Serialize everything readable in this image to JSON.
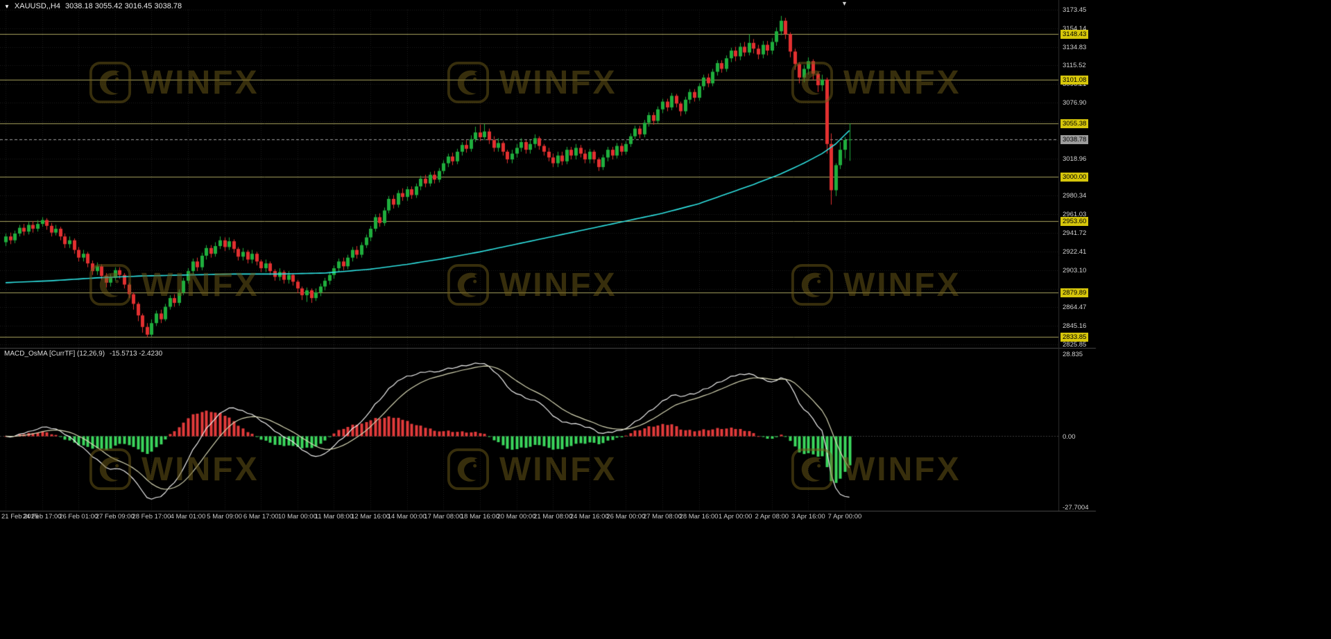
{
  "icons": {
    "dropdown": "▼",
    "shift_marker": "▼"
  },
  "title": {
    "symbol": "XAUUSD,,H4",
    "ohlc": "3038.18 3055.42 3016.45 3038.78"
  },
  "indicator": {
    "label": "MACD_OsMA [CurrTF] (12,26,9)",
    "values": "-15.5713 -2.4230"
  },
  "watermark": {
    "text": "WINFX",
    "color": "#6e5d18"
  },
  "price_axis": {
    "ticks": [
      {
        "v": 3173.45,
        "label": "3173.45"
      },
      {
        "v": 3154.14,
        "label": "3154.14"
      },
      {
        "v": 3134.83,
        "label": "3134.83"
      },
      {
        "v": 3115.52,
        "label": "3115.52"
      },
      {
        "v": 3096.21,
        "label": "3096.21"
      },
      {
        "v": 3076.9,
        "label": "3076.90"
      },
      {
        "v": 3018.96,
        "label": "3018.96"
      },
      {
        "v": 2980.34,
        "label": "2980.34"
      },
      {
        "v": 2961.03,
        "label": "2961.03"
      },
      {
        "v": 2941.72,
        "label": "2941.72"
      },
      {
        "v": 2922.41,
        "label": "2922.41"
      },
      {
        "v": 2903.1,
        "label": "2903.10"
      },
      {
        "v": 2864.47,
        "label": "2864.47"
      },
      {
        "v": 2845.16,
        "label": "2845.16"
      },
      {
        "v": 2825.85,
        "label": "2825.85"
      }
    ],
    "levels": [
      {
        "v": 3148.43,
        "label": "3148.43"
      },
      {
        "v": 3101.08,
        "label": "3101.08"
      },
      {
        "v": 3055.38,
        "label": "3055.38"
      },
      {
        "v": 3000.0,
        "label": "3000.00"
      },
      {
        "v": 2953.6,
        "label": "2953.60"
      },
      {
        "v": 2879.89,
        "label": "2879.89"
      },
      {
        "v": 2833.85,
        "label": "2833.85"
      }
    ],
    "current": {
      "v": 3038.78,
      "label": "3038.78"
    }
  },
  "macd_axis": {
    "top": "28.835",
    "zero": "0.00",
    "bottom": "-27.7004"
  },
  "time_axis": {
    "step_candles": 8,
    "labels": [
      "21 Feb 2025",
      "24 Feb 17:00",
      "26 Feb 01:00",
      "27 Feb 09:00",
      "28 Feb 17:00",
      "4 Mar 01:00",
      "5 Mar 09:00",
      "6 Mar 17:00",
      "10 Mar 00:00",
      "11 Mar 08:00",
      "12 Mar 16:00",
      "14 Mar 00:00",
      "17 Mar 08:00",
      "18 Mar 16:00",
      "20 Mar 00:00",
      "21 Mar 08:00",
      "24 Mar 16:00",
      "26 Mar 00:00",
      "27 Mar 08:00",
      "28 Mar 16:00",
      "1 Apr 00:00",
      "2 Apr 08:00",
      "3 Apr 16:00",
      "7 Apr 00:00"
    ]
  },
  "chart_data": {
    "type": "candlestick",
    "title": "XAUUSD,,H4",
    "timeframe": "H4",
    "current_ohlc": {
      "open": 3038.18,
      "high": 3055.42,
      "low": 3016.45,
      "close": 3038.78
    },
    "price_range": [
      2825.85,
      3173.45
    ],
    "grid_ticks": [
      2825.85,
      2845.16,
      2864.47,
      2883.78,
      2903.1,
      2922.41,
      2941.72,
      2961.03,
      2980.34,
      2999.65,
      3018.96,
      3038.27,
      3057.59,
      3076.9,
      3096.21,
      3115.52,
      3134.83,
      3154.14,
      3173.45
    ],
    "levels": [
      3148.43,
      3101.08,
      3055.38,
      3000.0,
      2953.6,
      2879.89,
      2833.85
    ],
    "candles": [
      [
        2932,
        2941,
        2928,
        2938
      ],
      [
        2938,
        2942,
        2930,
        2934
      ],
      [
        2934,
        2944,
        2931,
        2941
      ],
      [
        2941,
        2950,
        2938,
        2947
      ],
      [
        2947,
        2951,
        2939,
        2943
      ],
      [
        2943,
        2953,
        2940,
        2950
      ],
      [
        2950,
        2954,
        2942,
        2946
      ],
      [
        2946,
        2955,
        2943,
        2951
      ],
      [
        2951,
        2958,
        2948,
        2955
      ],
      [
        2955,
        2957,
        2945,
        2949
      ],
      [
        2949,
        2952,
        2938,
        2942
      ],
      [
        2942,
        2950,
        2939,
        2946
      ],
      [
        2946,
        2948,
        2934,
        2938
      ],
      [
        2938,
        2941,
        2926,
        2930
      ],
      [
        2930,
        2938,
        2926,
        2934
      ],
      [
        2934,
        2936,
        2920,
        2924
      ],
      [
        2924,
        2927,
        2912,
        2916
      ],
      [
        2916,
        2924,
        2912,
        2920
      ],
      [
        2920,
        2922,
        2906,
        2910
      ],
      [
        2910,
        2913,
        2898,
        2902
      ],
      [
        2902,
        2911,
        2898,
        2907
      ],
      [
        2907,
        2909,
        2893,
        2897
      ],
      [
        2897,
        2900,
        2885,
        2890
      ],
      [
        2890,
        2899,
        2886,
        2895
      ],
      [
        2895,
        2906,
        2892,
        2903
      ],
      [
        2903,
        2906,
        2894,
        2898
      ],
      [
        2898,
        2900,
        2884,
        2888
      ],
      [
        2888,
        2890,
        2874,
        2878
      ],
      [
        2878,
        2880,
        2862,
        2868
      ],
      [
        2868,
        2870,
        2850,
        2856
      ],
      [
        2856,
        2858,
        2838,
        2844
      ],
      [
        2844,
        2848,
        2833,
        2836
      ],
      [
        2836,
        2852,
        2834,
        2848
      ],
      [
        2848,
        2861,
        2845,
        2858
      ],
      [
        2858,
        2862,
        2848,
        2852
      ],
      [
        2852,
        2868,
        2850,
        2865
      ],
      [
        2865,
        2877,
        2862,
        2874
      ],
      [
        2874,
        2878,
        2865,
        2869
      ],
      [
        2869,
        2883,
        2866,
        2880
      ],
      [
        2880,
        2895,
        2877,
        2892
      ],
      [
        2892,
        2905,
        2889,
        2902
      ],
      [
        2902,
        2915,
        2899,
        2912
      ],
      [
        2912,
        2916,
        2902,
        2906
      ],
      [
        2906,
        2921,
        2903,
        2918
      ],
      [
        2918,
        2929,
        2914,
        2926
      ],
      [
        2926,
        2929,
        2916,
        2920
      ],
      [
        2920,
        2932,
        2917,
        2928
      ],
      [
        2928,
        2938,
        2925,
        2934
      ],
      [
        2934,
        2937,
        2923,
        2927
      ],
      [
        2927,
        2937,
        2924,
        2933
      ],
      [
        2933,
        2935,
        2921,
        2925
      ],
      [
        2925,
        2927,
        2913,
        2917
      ],
      [
        2917,
        2926,
        2913,
        2922
      ],
      [
        2922,
        2924,
        2910,
        2914
      ],
      [
        2914,
        2924,
        2910,
        2920
      ],
      [
        2920,
        2922,
        2908,
        2912
      ],
      [
        2912,
        2914,
        2901,
        2905
      ],
      [
        2905,
        2914,
        2901,
        2910
      ],
      [
        2910,
        2912,
        2898,
        2902
      ],
      [
        2902,
        2904,
        2892,
        2896
      ],
      [
        2896,
        2905,
        2892,
        2901
      ],
      [
        2901,
        2903,
        2889,
        2893
      ],
      [
        2893,
        2902,
        2889,
        2898
      ],
      [
        2898,
        2900,
        2887,
        2891
      ],
      [
        2891,
        2893,
        2879,
        2884
      ],
      [
        2884,
        2886,
        2872,
        2877
      ],
      [
        2877,
        2885,
        2870,
        2882
      ],
      [
        2882,
        2884,
        2869,
        2874
      ],
      [
        2874,
        2884,
        2871,
        2880
      ],
      [
        2880,
        2889,
        2876,
        2886
      ],
      [
        2886,
        2895,
        2882,
        2892
      ],
      [
        2892,
        2901,
        2888,
        2898
      ],
      [
        2898,
        2908,
        2894,
        2905
      ],
      [
        2905,
        2915,
        2901,
        2912
      ],
      [
        2912,
        2916,
        2903,
        2907
      ],
      [
        2907,
        2919,
        2904,
        2916
      ],
      [
        2916,
        2927,
        2912,
        2924
      ],
      [
        2924,
        2928,
        2915,
        2919
      ],
      [
        2919,
        2932,
        2916,
        2929
      ],
      [
        2929,
        2940,
        2926,
        2937
      ],
      [
        2937,
        2949,
        2933,
        2946
      ],
      [
        2946,
        2961,
        2943,
        2958
      ],
      [
        2958,
        2962,
        2948,
        2952
      ],
      [
        2952,
        2968,
        2949,
        2965
      ],
      [
        2965,
        2980,
        2962,
        2977
      ],
      [
        2977,
        2981,
        2967,
        2971
      ],
      [
        2971,
        2986,
        2968,
        2983
      ],
      [
        2983,
        2988,
        2975,
        2979
      ],
      [
        2979,
        2990,
        2975,
        2987
      ],
      [
        2987,
        2990,
        2977,
        2981
      ],
      [
        2981,
        2993,
        2978,
        2990
      ],
      [
        2990,
        3001,
        2986,
        2998
      ],
      [
        2998,
        3002,
        2989,
        2993
      ],
      [
        2993,
        3005,
        2990,
        3002
      ],
      [
        3002,
        3006,
        2993,
        2997
      ],
      [
        2997,
        3009,
        2994,
        3006
      ],
      [
        3006,
        3017,
        3003,
        3014
      ],
      [
        3014,
        3024,
        3010,
        3021
      ],
      [
        3021,
        3025,
        3012,
        3016
      ],
      [
        3016,
        3029,
        3013,
        3026
      ],
      [
        3026,
        3036,
        3022,
        3033
      ],
      [
        3033,
        3038,
        3025,
        3029
      ],
      [
        3029,
        3043,
        3026,
        3039
      ],
      [
        3039,
        3052,
        3036,
        3046
      ],
      [
        3046,
        3054,
        3037,
        3041
      ],
      [
        3041,
        3055,
        3038,
        3047
      ],
      [
        3047,
        3050,
        3034,
        3038
      ],
      [
        3038,
        3042,
        3026,
        3030
      ],
      [
        3030,
        3040,
        3026,
        3035
      ],
      [
        3035,
        3037,
        3022,
        3026
      ],
      [
        3026,
        3028,
        3014,
        3018
      ],
      [
        3018,
        3028,
        3014,
        3024
      ],
      [
        3024,
        3034,
        3020,
        3030
      ],
      [
        3030,
        3040,
        3026,
        3036
      ],
      [
        3036,
        3038,
        3024,
        3028
      ],
      [
        3028,
        3038,
        3024,
        3034
      ],
      [
        3034,
        3044,
        3030,
        3040
      ],
      [
        3040,
        3042,
        3028,
        3032
      ],
      [
        3032,
        3034,
        3022,
        3026
      ],
      [
        3026,
        3030,
        3016,
        3020
      ],
      [
        3020,
        3024,
        3010,
        3014
      ],
      [
        3014,
        3026,
        3010,
        3022
      ],
      [
        3022,
        3026,
        3012,
        3016
      ],
      [
        3016,
        3031,
        3013,
        3028
      ],
      [
        3028,
        3031,
        3018,
        3022
      ],
      [
        3022,
        3034,
        3018,
        3030
      ],
      [
        3030,
        3033,
        3020,
        3024
      ],
      [
        3024,
        3028,
        3014,
        3018
      ],
      [
        3018,
        3029,
        3014,
        3026
      ],
      [
        3026,
        3028,
        3014,
        3018
      ],
      [
        3018,
        3020,
        3006,
        3010
      ],
      [
        3010,
        3023,
        3007,
        3020
      ],
      [
        3020,
        3031,
        3016,
        3028
      ],
      [
        3028,
        3031,
        3018,
        3022
      ],
      [
        3022,
        3035,
        3019,
        3032
      ],
      [
        3032,
        3035,
        3022,
        3026
      ],
      [
        3026,
        3037,
        3023,
        3034
      ],
      [
        3034,
        3045,
        3031,
        3042
      ],
      [
        3042,
        3053,
        3039,
        3050
      ],
      [
        3050,
        3053,
        3040,
        3044
      ],
      [
        3044,
        3059,
        3041,
        3056
      ],
      [
        3056,
        3067,
        3052,
        3064
      ],
      [
        3064,
        3067,
        3054,
        3058
      ],
      [
        3058,
        3073,
        3055,
        3070
      ],
      [
        3070,
        3081,
        3066,
        3078
      ],
      [
        3078,
        3081,
        3068,
        3072
      ],
      [
        3072,
        3087,
        3069,
        3084
      ],
      [
        3084,
        3086,
        3072,
        3076
      ],
      [
        3076,
        3078,
        3063,
        3068
      ],
      [
        3068,
        3083,
        3065,
        3080
      ],
      [
        3080,
        3091,
        3076,
        3088
      ],
      [
        3088,
        3091,
        3078,
        3082
      ],
      [
        3082,
        3097,
        3079,
        3094
      ],
      [
        3094,
        3106,
        3090,
        3103
      ],
      [
        3103,
        3107,
        3093,
        3097
      ],
      [
        3097,
        3112,
        3094,
        3109
      ],
      [
        3109,
        3121,
        3105,
        3118
      ],
      [
        3118,
        3121,
        3108,
        3112
      ],
      [
        3112,
        3126,
        3109,
        3123
      ],
      [
        3123,
        3134,
        3119,
        3131
      ],
      [
        3131,
        3135,
        3120,
        3125
      ],
      [
        3125,
        3139,
        3121,
        3135
      ],
      [
        3135,
        3140,
        3125,
        3129
      ],
      [
        3129,
        3148,
        3126,
        3139
      ],
      [
        3139,
        3143,
        3128,
        3133
      ],
      [
        3133,
        3137,
        3122,
        3127
      ],
      [
        3127,
        3141,
        3123,
        3137
      ],
      [
        3137,
        3141,
        3126,
        3131
      ],
      [
        3131,
        3144,
        3127,
        3140
      ],
      [
        3140,
        3155,
        3136,
        3151
      ],
      [
        3151,
        3167,
        3147,
        3162
      ],
      [
        3162,
        3165,
        3143,
        3148
      ],
      [
        3148,
        3150,
        3124,
        3130
      ],
      [
        3130,
        3133,
        3111,
        3117
      ],
      [
        3117,
        3119,
        3097,
        3103
      ],
      [
        3103,
        3116,
        3098,
        3112
      ],
      [
        3112,
        3124,
        3106,
        3120
      ],
      [
        3120,
        3122,
        3101,
        3107
      ],
      [
        3107,
        3109,
        3088,
        3095
      ],
      [
        3095,
        3106,
        3089,
        3101
      ],
      [
        3101,
        3103,
        3024,
        3034
      ],
      [
        3034,
        3045,
        2971,
        2986
      ],
      [
        2986,
        3014,
        2980,
        3012
      ],
      [
        3012,
        3036,
        3008,
        3028
      ],
      [
        3028,
        3041,
        3019,
        3038.18
      ],
      [
        3038.18,
        3055.42,
        3016.45,
        3038.78
      ]
    ],
    "ma": {
      "name": "moving-average",
      "color": "#2fe3e3",
      "points": [
        [
          0,
          2890
        ],
        [
          10,
          2892
        ],
        [
          20,
          2895
        ],
        [
          30,
          2897
        ],
        [
          40,
          2898
        ],
        [
          50,
          2899
        ],
        [
          60,
          2899
        ],
        [
          70,
          2900
        ],
        [
          80,
          2904
        ],
        [
          88,
          2909
        ],
        [
          96,
          2915
        ],
        [
          104,
          2922
        ],
        [
          112,
          2930
        ],
        [
          120,
          2938
        ],
        [
          128,
          2946
        ],
        [
          136,
          2954
        ],
        [
          144,
          2962
        ],
        [
          152,
          2972
        ],
        [
          158,
          2982
        ],
        [
          164,
          2992
        ],
        [
          170,
          3003
        ],
        [
          175,
          3014
        ],
        [
          179,
          3024
        ],
        [
          182,
          3034
        ],
        [
          185,
          3048
        ]
      ]
    },
    "macd": {
      "name": "MACD_OsMA",
      "fast": 12,
      "slow": 26,
      "signal": 9,
      "last_values": [
        -15.5713,
        -2.423
      ],
      "axis_range": [
        -27.7004,
        28.835
      ]
    },
    "colors": {
      "up": "#1fae3d",
      "down": "#e23030",
      "level": "#a8a35e",
      "current": "#9c9c9c",
      "badge_bg": "#d6c60b",
      "current_bg": "#9c9c9c",
      "osma_pos": "#e23b3b",
      "osma_neg": "#3bd65c",
      "macd_line": "#f0f0f0",
      "signal_line": "#d6d6b4",
      "grid": "#1f1f1f"
    }
  }
}
